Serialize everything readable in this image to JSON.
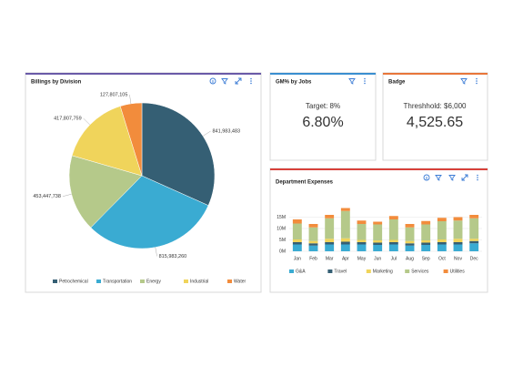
{
  "chart_data": [
    {
      "type": "pie",
      "title": "Billings by Division",
      "categories": [
        "Petrochemical",
        "Transportation",
        "Energy",
        "Industrial",
        "Water"
      ],
      "values": [
        841983483,
        815983260,
        453447738,
        417807759,
        127807105
      ],
      "value_labels": [
        "841,983,483",
        "815,983,260",
        "453,447,738",
        "417,807,759",
        "127,807,105"
      ],
      "colors": [
        "#355f74",
        "#3aabd2",
        "#b5c98a",
        "#f0d45b",
        "#f28c3c"
      ]
    },
    {
      "type": "bar",
      "title": "Department Expenses",
      "categories": [
        "Jan",
        "Feb",
        "Mar",
        "Apr",
        "May",
        "Jun",
        "Jul",
        "Aug",
        "Sep",
        "Oct",
        "Nov",
        "Dec"
      ],
      "series": [
        {
          "name": "G&A",
          "color": "#3aabd2",
          "values": [
            3,
            2.5,
            3,
            3,
            3,
            2.8,
            3,
            2.5,
            2.8,
            3,
            3,
            3.5
          ]
        },
        {
          "name": "Travel",
          "color": "#355f74",
          "values": [
            1,
            1,
            1,
            1.2,
            1,
            1,
            1,
            1,
            1,
            1,
            1,
            1
          ]
        },
        {
          "name": "Marketing",
          "color": "#f0d45b",
          "values": [
            1.2,
            1,
            1.5,
            1.5,
            1,
            1,
            1,
            1,
            1,
            1.2,
            1.5,
            1
          ]
        },
        {
          "name": "Services",
          "color": "#b5c98a",
          "values": [
            7,
            6,
            9,
            12,
            7,
            7,
            9,
            6,
            7,
            8,
            8,
            9
          ]
        },
        {
          "name": "Utilities",
          "color": "#f28c3c",
          "values": [
            1.8,
            1.5,
            1.5,
            1.3,
            1.5,
            1.2,
            1.5,
            1.5,
            1.5,
            1.5,
            1.5,
            1.5
          ]
        }
      ],
      "ylim": [
        0,
        20
      ],
      "yticks": [
        {
          "value": 0,
          "label": "0M"
        },
        {
          "value": 5,
          "label": "5M"
        },
        {
          "value": 10,
          "label": "10M"
        },
        {
          "value": 15,
          "label": "15M"
        }
      ],
      "grid": true,
      "stacked": true
    }
  ],
  "cards": [
    {
      "title": "GM% by Jobs",
      "subtitle": "Target: 8%",
      "value": "6.80%"
    },
    {
      "title": "Badge",
      "subtitle": "Threshhold: $6,000",
      "value": "4,525.65"
    }
  ]
}
